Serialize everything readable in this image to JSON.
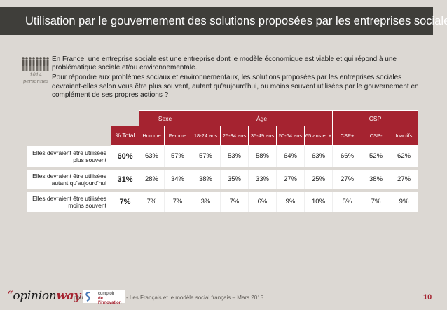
{
  "header": {
    "title": "Utilisation par le gouvernement des solutions proposées par les entreprises sociales"
  },
  "sample": {
    "count": "1014",
    "unit": "personnes",
    "icon": "people-group-icon"
  },
  "intro": {
    "definition": "En France, une entreprise sociale est une entreprise dont le modèle économique est viable et qui répond à une problématique sociale et/ou environnementale.",
    "question": "Pour répondre aux problèmes sociaux et environnementaux, les solutions proposées par les entreprises sociales devraient-elles selon vous être plus souvent, autant qu'aujourd'hui, ou moins souvent utilisées par le gouvernement en complément de ses propres actions ?"
  },
  "table": {
    "groups": [
      "Sexe",
      "Âge",
      "CSP"
    ],
    "columns": [
      "% Total",
      "Homme",
      "Femme",
      "18-24 ans",
      "25-34 ans",
      "35-49 ans",
      "50-64 ans",
      "65 ans et +",
      "CSP+",
      "CSP-",
      "Inactifs"
    ],
    "rows": [
      {
        "label": "Elles devraient être utilisées plus souvent",
        "values": [
          "60%",
          "63%",
          "57%",
          "57%",
          "53%",
          "58%",
          "64%",
          "63%",
          "66%",
          "52%",
          "62%"
        ]
      },
      {
        "label": "Elles devraient être utilisées autant qu'aujourd'hui",
        "values": [
          "31%",
          "28%",
          "34%",
          "38%",
          "35%",
          "33%",
          "27%",
          "25%",
          "27%",
          "38%",
          "27%"
        ]
      },
      {
        "label": "Elles devraient être utilisées moins souvent",
        "values": [
          "7%",
          "7%",
          "7%",
          "3%",
          "7%",
          "6%",
          "9%",
          "10%",
          "5%",
          "7%",
          "9%"
        ]
      }
    ]
  },
  "colors": {
    "accent": "#a52330",
    "title_bg": "#3f3e3a",
    "page_bg": "#dcd8d3"
  },
  "footer": {
    "logo_quote": "“",
    "logo_main": "opinion",
    "logo_way": "way",
    "pour": "pour",
    "sponsor_line1": "comptoir",
    "sponsor_line2": "de l'innovation",
    "caption": "- Les Français et le modèle social français – Mars 2015",
    "page": "10"
  }
}
